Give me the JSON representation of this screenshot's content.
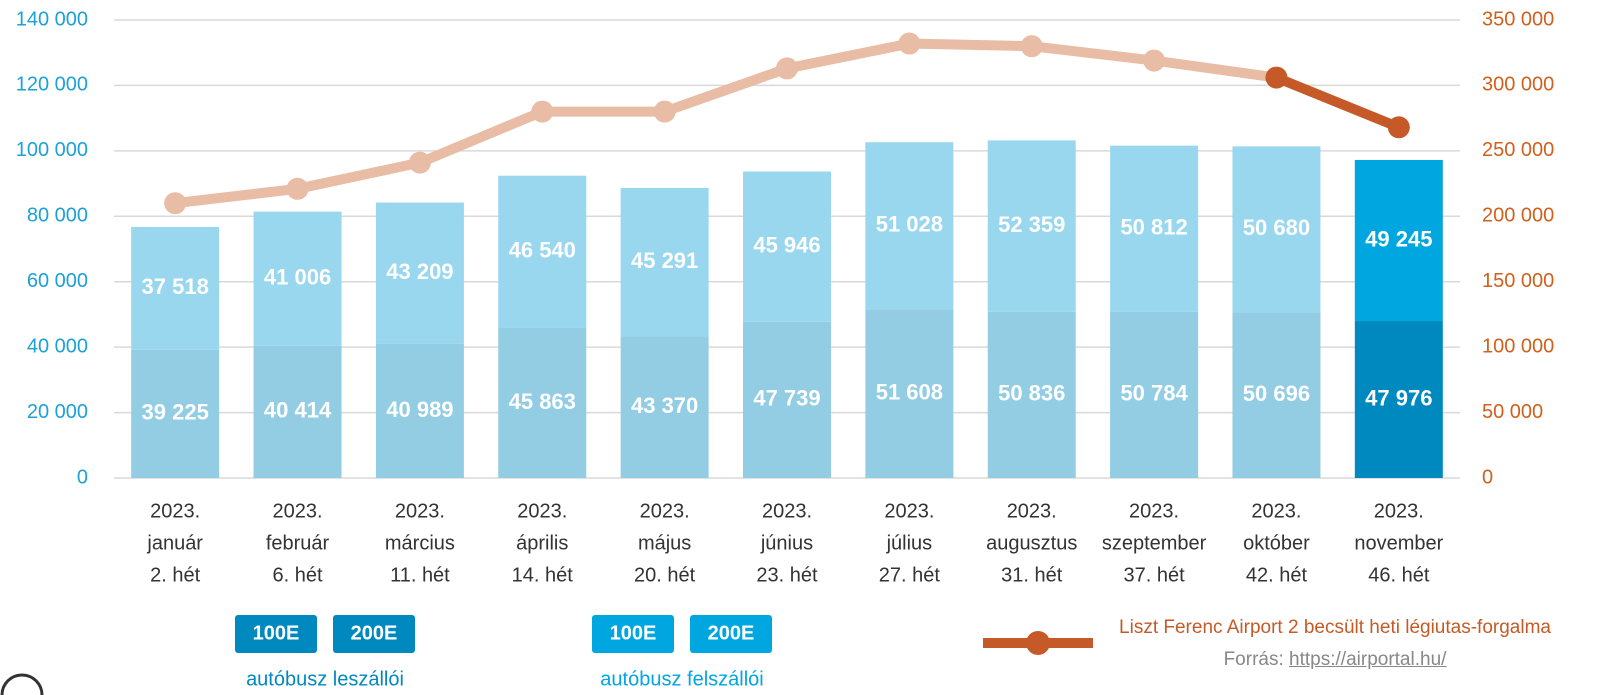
{
  "chart_data": {
    "type": "bar",
    "categories": [
      [
        "2023.",
        "január",
        "2. hét"
      ],
      [
        "2023.",
        "február",
        "6. hét"
      ],
      [
        "2023.",
        "március",
        "11. hét"
      ],
      [
        "2023.",
        "április",
        "14. hét"
      ],
      [
        "2023.",
        "május",
        "20. hét"
      ],
      [
        "2023.",
        "június",
        "23. hét"
      ],
      [
        "2023.",
        "július",
        "27. hét"
      ],
      [
        "2023.",
        "augusztus",
        "31. hét"
      ],
      [
        "2023.",
        "szeptember",
        "37. hét"
      ],
      [
        "2023.",
        "október",
        "42. hét"
      ],
      [
        "2023.",
        "november",
        "46. hét"
      ]
    ],
    "stacked": true,
    "highlight_index": 10,
    "series": [
      {
        "name": "autóbusz leszállói",
        "legend_items": [
          "100E",
          "200E"
        ],
        "color": "#93cde3",
        "highlight_color": "#0089bf",
        "values": [
          39225,
          40414,
          40989,
          45863,
          43370,
          47739,
          51608,
          50836,
          50784,
          50696,
          47976
        ],
        "value_labels": [
          "39 225",
          "40 414",
          "40 989",
          "45 863",
          "43 370",
          "47 739",
          "51 608",
          "50 836",
          "50 784",
          "50 696",
          "47 976"
        ]
      },
      {
        "name": "autóbusz felszállói",
        "legend_items": [
          "100E",
          "200E"
        ],
        "color": "#99d7ef",
        "highlight_color": "#00a6e0",
        "values": [
          37518,
          41006,
          43209,
          46540,
          45291,
          45946,
          51028,
          52359,
          50812,
          50680,
          49245
        ],
        "value_labels": [
          "37 518",
          "41 006",
          "43 209",
          "46 540",
          "45 291",
          "45 946",
          "51 028",
          "52 359",
          "50 812",
          "50 680",
          "49 245"
        ]
      },
      {
        "name": "Liszt Ferenc Airport 2 becsült heti légiutas-forgalma",
        "type": "line",
        "axis": "y2",
        "color": "#e8bca5",
        "highlight_color": "#c55a28",
        "values": [
          210000,
          221000,
          241000,
          280000,
          280000,
          313000,
          332000,
          330000,
          319000,
          306000,
          268000
        ]
      }
    ],
    "source_label": "Forrás:",
    "source_url": "https://airportal.hu/",
    "ylim": [
      0,
      140000
    ],
    "yticks": [
      0,
      {
        "value": 20000,
        "label": "20 000"
      },
      {
        "value": 40000,
        "label": "40 000"
      },
      {
        "value": 60000,
        "label": "60 000"
      },
      {
        "value": 80000,
        "label": "80 000"
      },
      {
        "value": 100000,
        "label": "100 000"
      },
      {
        "value": 120000,
        "label": "120 000"
      },
      {
        "value": 140000,
        "label": "140 000"
      }
    ],
    "y2lim": [
      0,
      350000
    ],
    "y2ticks": [
      0,
      {
        "value": 50000,
        "label": "50 000"
      },
      {
        "value": 100000,
        "label": "100 000"
      },
      {
        "value": 150000,
        "label": "150 000"
      },
      {
        "value": 200000,
        "label": "200 000"
      },
      {
        "value": 250000,
        "label": "250 000"
      },
      {
        "value": 300000,
        "label": "300 000"
      },
      {
        "value": 350000,
        "label": "350 000"
      }
    ],
    "grid": true
  }
}
